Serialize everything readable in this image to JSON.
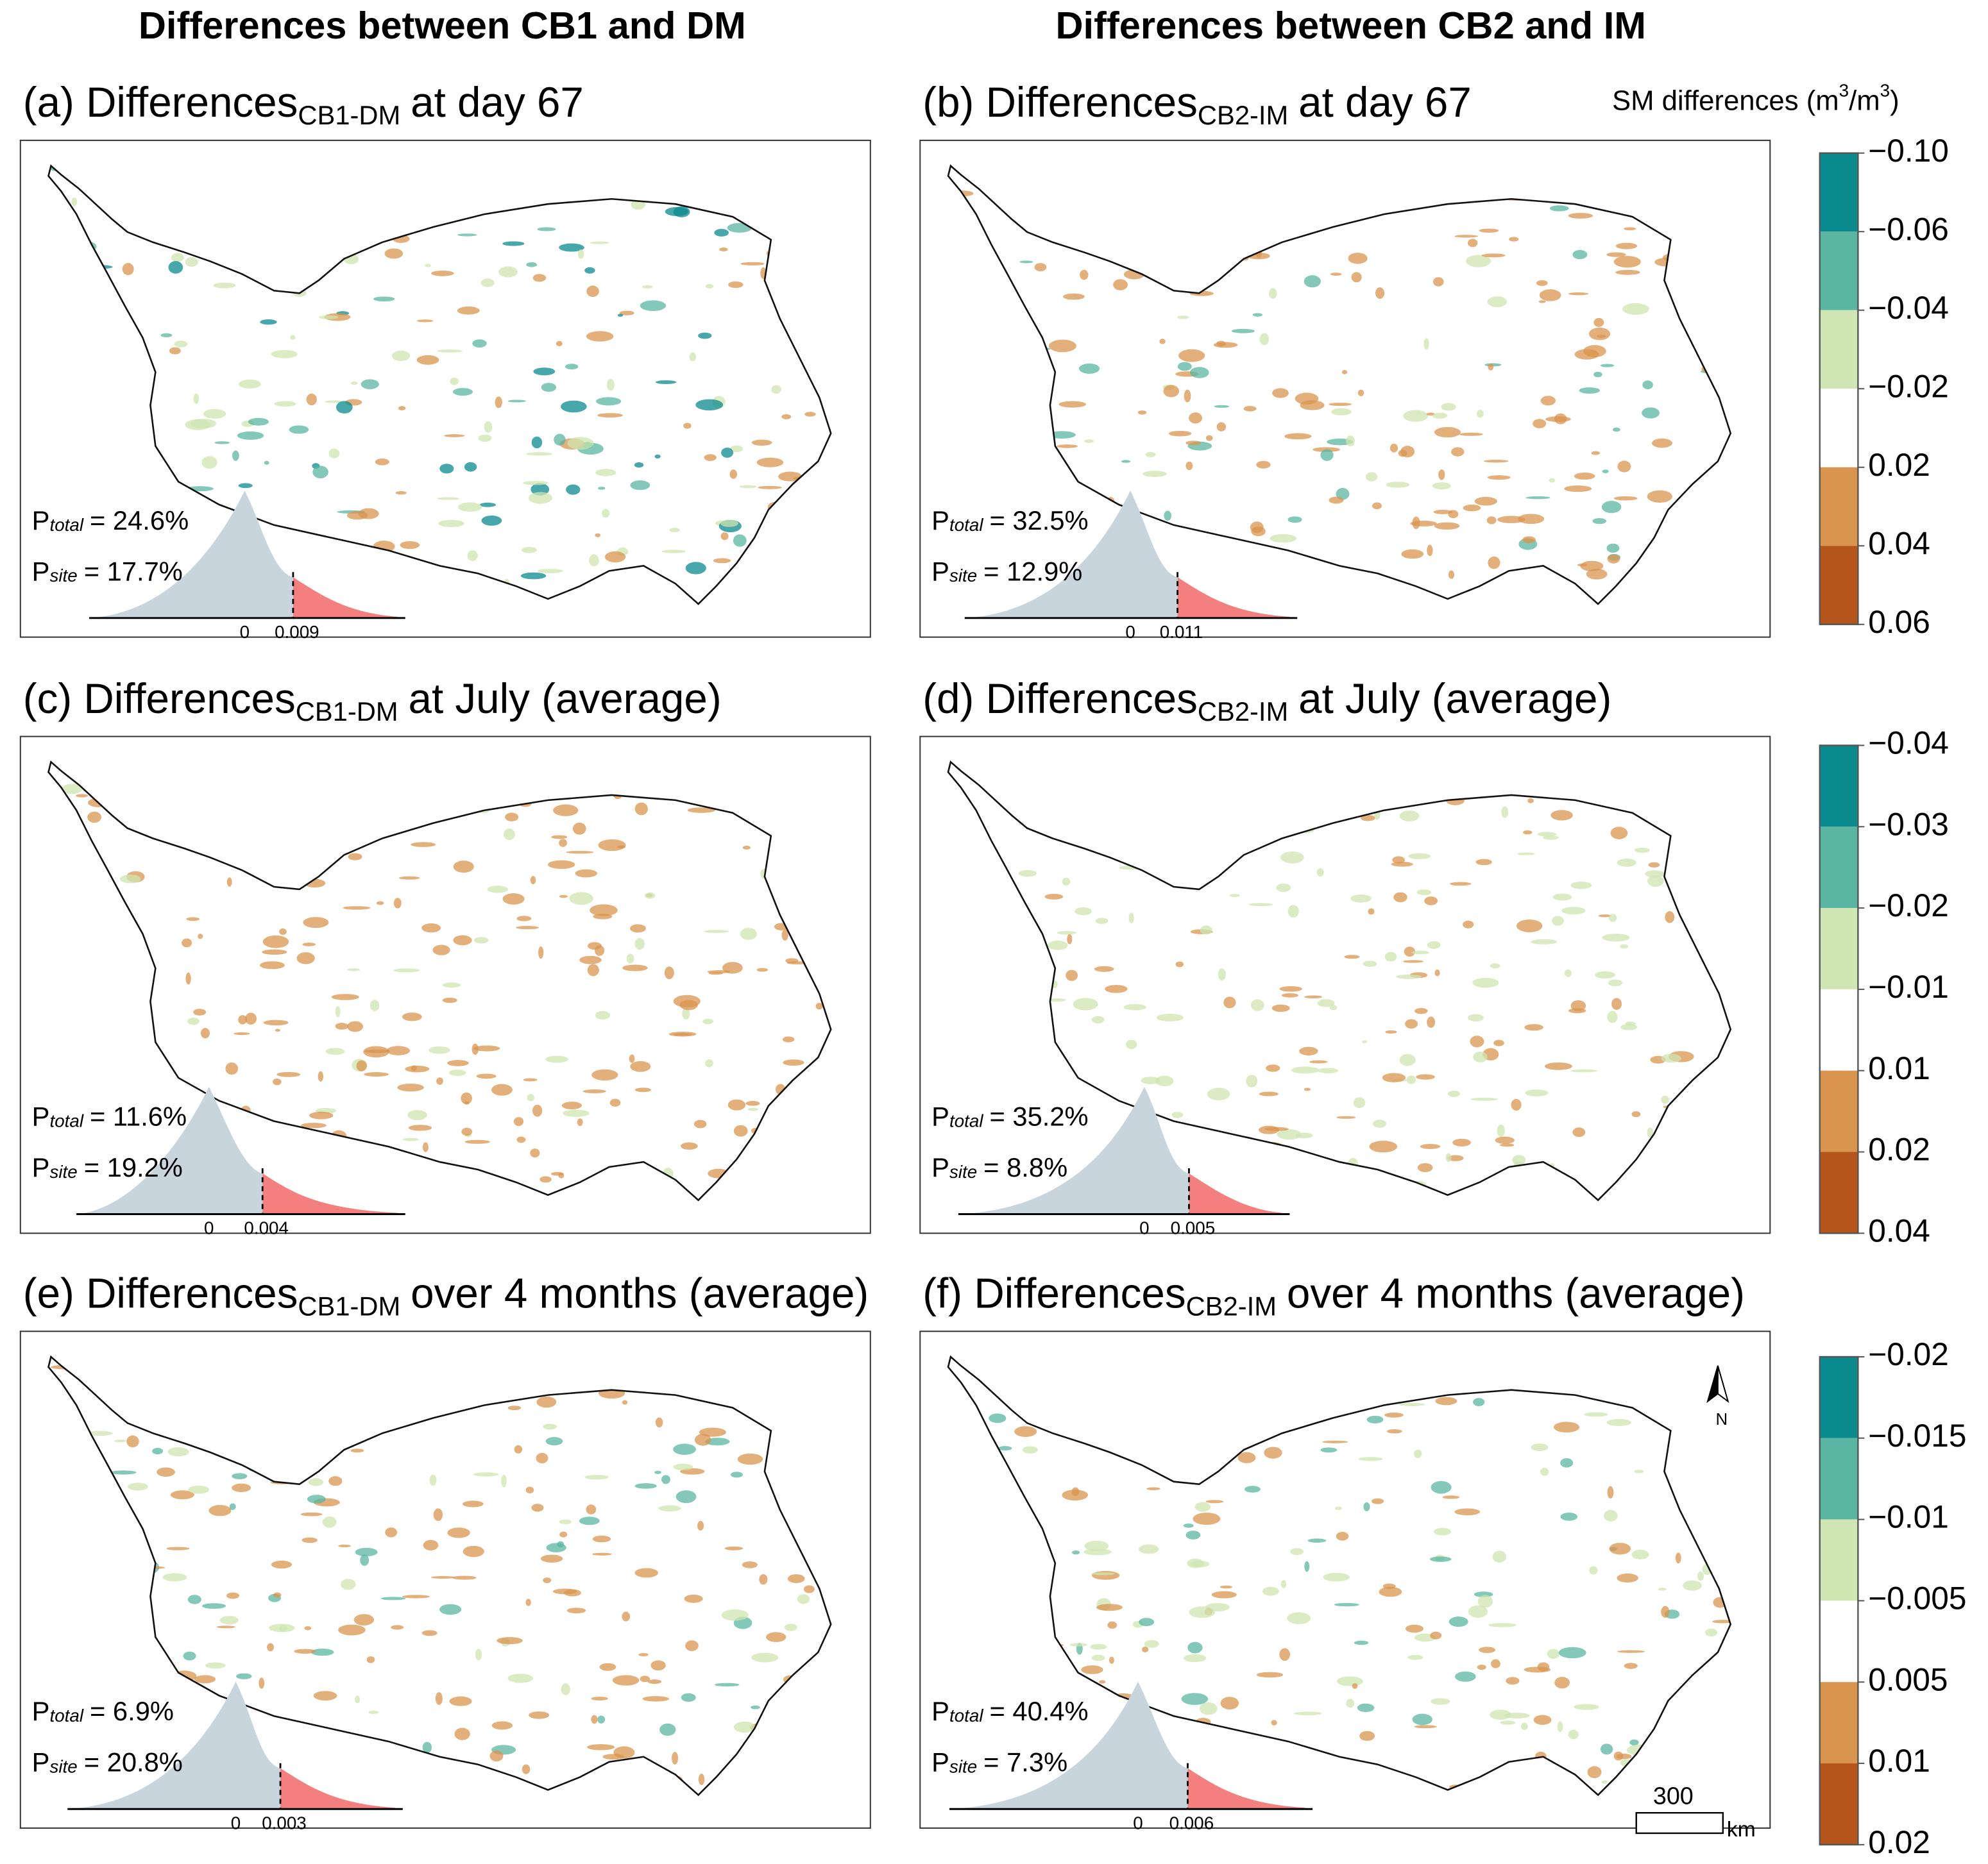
{
  "column_titles": [
    "Differences between CB1 and DM",
    "Differences between CB2 and IM"
  ],
  "panels": [
    {
      "title": {
        "main": "(a) Differences",
        "subscript": "CB1-DM",
        "rest": "at day 67"
      },
      "p_total": {
        "symbol": "P",
        "subscript": "total",
        "text": "= 24.6%"
      },
      "p_site": {
        "symbol": "P",
        "subscript": "site",
        "text": "= 17.7%"
      },
      "hist_ticks": [
        "0",
        "0.009"
      ]
    },
    {
      "title": {
        "main": "(b) Differences",
        "subscript": "CB2-IM",
        "rest": "at day 67"
      },
      "p_total": {
        "symbol": "P",
        "subscript": "total",
        "text": "= 32.5%"
      },
      "p_site": {
        "symbol": "P",
        "subscript": "site",
        "text": "= 12.9%"
      },
      "hist_ticks": [
        "0",
        "0.011"
      ]
    },
    {
      "title": {
        "main": "(c) Differences",
        "subscript": "CB1-DM",
        "rest": "at July (average)"
      },
      "p_total": {
        "symbol": "P",
        "subscript": "total",
        "text": "= 11.6%"
      },
      "p_site": {
        "symbol": "P",
        "subscript": "site",
        "text": "= 19.2%"
      },
      "hist_ticks": [
        "0",
        "0.004"
      ]
    },
    {
      "title": {
        "main": "(d) Differences",
        "subscript": "CB2-IM",
        "rest": "at July (average)"
      },
      "p_total": {
        "symbol": "P",
        "subscript": "total",
        "text": "= 35.2%"
      },
      "p_site": {
        "symbol": "P",
        "subscript": "site",
        "text": "= 8.8%"
      },
      "hist_ticks": [
        "0",
        "0.005"
      ]
    },
    {
      "title": {
        "main": "(e) Differences",
        "subscript": "CB1-DM",
        "rest": "over 4 months (average)"
      },
      "p_total": {
        "symbol": "P",
        "subscript": "total",
        "text": "= 6.9%"
      },
      "p_site": {
        "symbol": "P",
        "subscript": "site",
        "text": "= 20.8%"
      },
      "hist_ticks": [
        "0",
        "0.003"
      ]
    },
    {
      "title": {
        "main": "(f) Differences",
        "subscript": "CB2-IM",
        "rest": "over 4 months (average)"
      },
      "p_total": {
        "symbol": "P",
        "subscript": "total",
        "text": "= 40.4%"
      },
      "p_site": {
        "symbol": "P",
        "subscript": "site",
        "text": "= 7.3%"
      },
      "hist_ticks": [
        "0",
        "0.006"
      ]
    }
  ],
  "legend": {
    "title": {
      "text": "SM differences (m",
      "sup1": "3",
      "mid": "/m",
      "sup2": "3",
      "end": ")"
    },
    "colors": [
      "#0b8a8e",
      "#5ab5a2",
      "#cfe6b2",
      "#ffffff",
      "#d9944e",
      "#b4561b"
    ],
    "rows": [
      [
        "−0.10",
        "−0.06",
        "−0.04",
        "−0.02",
        "0.02",
        "0.04",
        "0.06"
      ],
      [
        "−0.04",
        "−0.03",
        "−0.02",
        "−0.01",
        "0.01",
        "0.02",
        "0.04"
      ],
      [
        "−0.02",
        "−0.015",
        "−0.01",
        "−0.005",
        "0.005",
        "0.01",
        "0.02"
      ]
    ]
  },
  "north_label": "N",
  "scale_bar": {
    "distance": "300",
    "unit": "km"
  }
}
